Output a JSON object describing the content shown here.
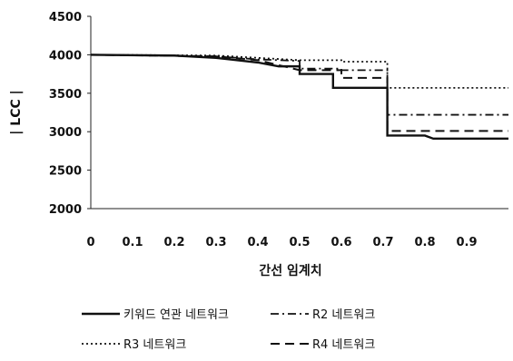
{
  "chart_data": {
    "type": "line",
    "xlabel": "간선 임계치",
    "ylabel": "| LCC |",
    "xlim": [
      0,
      1.0
    ],
    "ylim": [
      2000,
      4500
    ],
    "x_ticks": [
      "0",
      "0.1",
      "0.2",
      "0.3",
      "0.4",
      "0.5",
      "0.6",
      "0.7",
      "0.8",
      "0.9"
    ],
    "y_ticks": [
      "2000",
      "2500",
      "3000",
      "3500",
      "4000",
      "4500"
    ],
    "grid": false,
    "legend_position": "bottom",
    "series": [
      {
        "name": "키워드 연관 네트워크",
        "style": "solid",
        "color": "#111111",
        "points": [
          [
            0,
            4000
          ],
          [
            0.2,
            3990
          ],
          [
            0.3,
            3960
          ],
          [
            0.4,
            3900
          ],
          [
            0.45,
            3850
          ],
          [
            0.5,
            3850
          ],
          [
            0.5,
            3750
          ],
          [
            0.58,
            3750
          ],
          [
            0.58,
            3570
          ],
          [
            0.71,
            3570
          ],
          [
            0.71,
            2950
          ],
          [
            0.8,
            2950
          ],
          [
            0.82,
            2910
          ],
          [
            1.0,
            2910
          ]
        ]
      },
      {
        "name": "R2 네트워크",
        "style": "dashdot",
        "color": "#111111",
        "points": [
          [
            0,
            4000
          ],
          [
            0.3,
            3980
          ],
          [
            0.4,
            3940
          ],
          [
            0.5,
            3920
          ],
          [
            0.5,
            3820
          ],
          [
            0.6,
            3820
          ],
          [
            0.6,
            3800
          ],
          [
            0.71,
            3800
          ],
          [
            0.71,
            3220
          ],
          [
            1.0,
            3220
          ]
        ]
      },
      {
        "name": "R3 네트워크",
        "style": "dotted",
        "color": "#111111",
        "points": [
          [
            0,
            4000
          ],
          [
            0.3,
            3990
          ],
          [
            0.4,
            3960
          ],
          [
            0.5,
            3930
          ],
          [
            0.6,
            3930
          ],
          [
            0.6,
            3910
          ],
          [
            0.71,
            3910
          ],
          [
            0.71,
            3570
          ],
          [
            1.0,
            3570
          ]
        ]
      },
      {
        "name": "R4 네트워크",
        "style": "dashed",
        "color": "#111111",
        "points": [
          [
            0,
            4000
          ],
          [
            0.3,
            3980
          ],
          [
            0.4,
            3930
          ],
          [
            0.5,
            3800
          ],
          [
            0.6,
            3800
          ],
          [
            0.6,
            3700
          ],
          [
            0.71,
            3700
          ],
          [
            0.71,
            3010
          ],
          [
            1.0,
            3010
          ]
        ]
      }
    ]
  }
}
